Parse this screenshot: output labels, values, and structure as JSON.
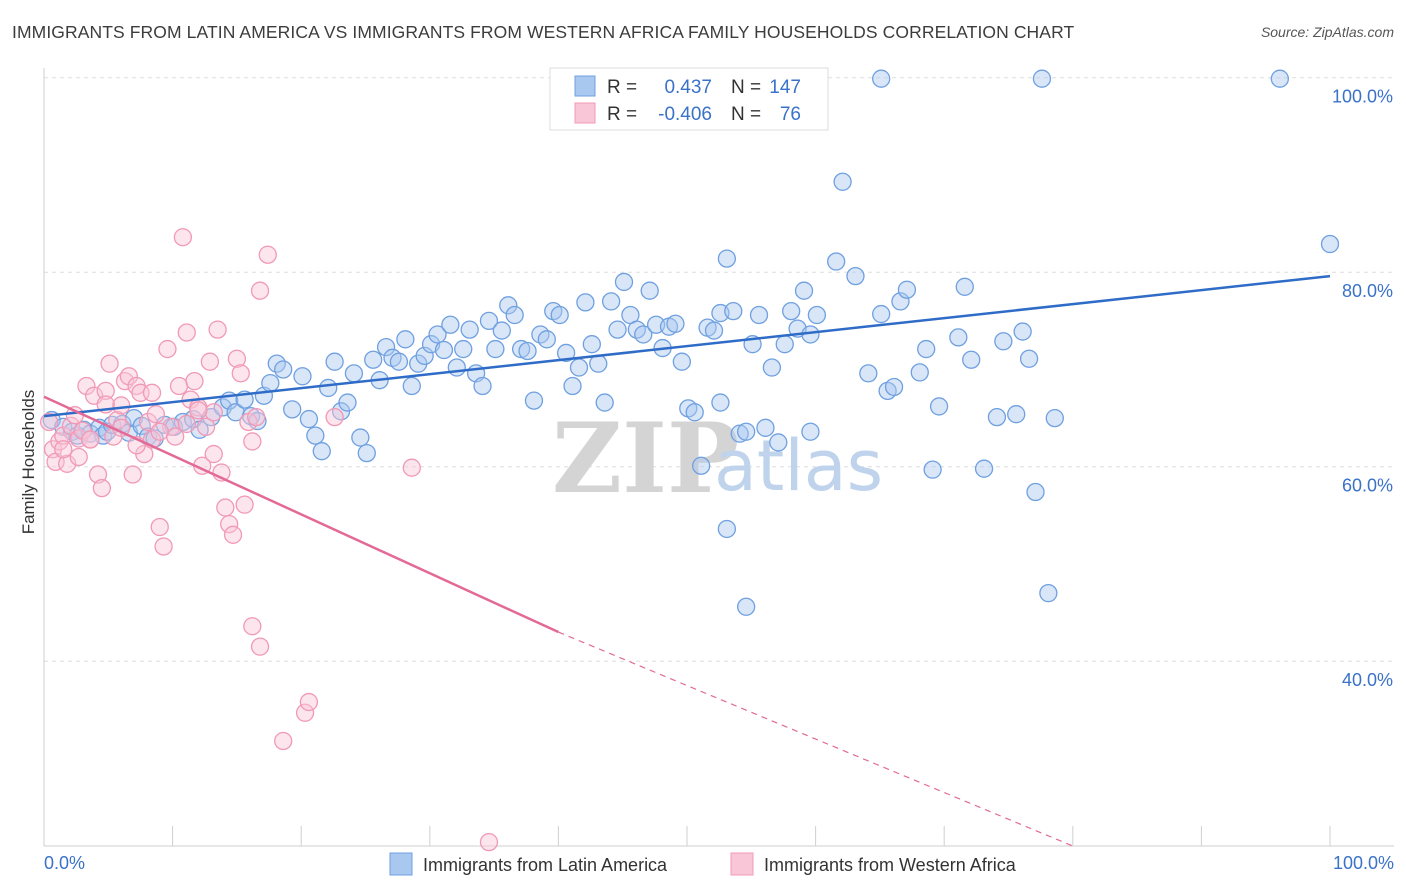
{
  "header": {
    "title": "IMMIGRANTS FROM LATIN AMERICA VS IMMIGRANTS FROM WESTERN AFRICA FAMILY HOUSEHOLDS CORRELATION CHART",
    "source": "Source: ZipAtlas.com"
  },
  "watermark": {
    "zip": "ZIP",
    "atlas": "atlas"
  },
  "chart_data": {
    "type": "scatter",
    "title": "IMMIGRANTS FROM LATIN AMERICA VS IMMIGRANTS FROM WESTERN AFRICA FAMILY HOUSEHOLDS CORRELATION CHART",
    "xlabel": "",
    "ylabel": "Family Households",
    "xlim": [
      0,
      100
    ],
    "ylim": [
      21,
      101
    ],
    "x_tick_labels": {
      "min": "0.0%",
      "max": "100.0%"
    },
    "y_ticks": [
      {
        "value": 40,
        "label": "40.0%"
      },
      {
        "value": 60,
        "label": "60.0%"
      },
      {
        "value": 80,
        "label": "80.0%"
      },
      {
        "value": 100,
        "label": "100.0%"
      }
    ],
    "grid": true,
    "legend_position": "top-center",
    "stats": [
      {
        "r_label": "R =",
        "r_value": "0.437",
        "n_label": "N =",
        "n_value": "147"
      },
      {
        "r_label": "R =",
        "r_value": "-0.406",
        "n_label": "N =",
        "n_value": "76"
      }
    ],
    "series": [
      {
        "name": "Immigrants from Latin America",
        "color": "#6fa0e0",
        "fill": "#a9c8f0",
        "line_color": "#2f6cc7",
        "trend": {
          "x0": 0,
          "y0": 65.2,
          "x1": 100,
          "y1": 79.6,
          "dashed_from": null
        },
        "points": [
          [
            0.6,
            64.8
          ],
          [
            1.5,
            64.1
          ],
          [
            2.2,
            63.6
          ],
          [
            2.6,
            63.2
          ],
          [
            3.1,
            63.8
          ],
          [
            3.6,
            63.4
          ],
          [
            4.3,
            64.0
          ],
          [
            4.6,
            63.2
          ],
          [
            4.9,
            63.6
          ],
          [
            5.3,
            64.3
          ],
          [
            6.1,
            64.4
          ],
          [
            6.6,
            63.5
          ],
          [
            7.0,
            65.0
          ],
          [
            7.6,
            64.2
          ],
          [
            8.1,
            63.1
          ],
          [
            8.6,
            62.9
          ],
          [
            9.4,
            64.3
          ],
          [
            10.1,
            64.1
          ],
          [
            10.8,
            64.6
          ],
          [
            11.6,
            64.9
          ],
          [
            12.1,
            63.8
          ],
          [
            13.0,
            65.1
          ],
          [
            13.9,
            66.1
          ],
          [
            14.4,
            66.8
          ],
          [
            14.9,
            65.6
          ],
          [
            15.6,
            66.9
          ],
          [
            16.1,
            65.2
          ],
          [
            16.6,
            64.7
          ],
          [
            17.1,
            67.3
          ],
          [
            17.6,
            68.6
          ],
          [
            18.1,
            70.6
          ],
          [
            18.6,
            70.0
          ],
          [
            19.3,
            65.9
          ],
          [
            20.1,
            69.3
          ],
          [
            20.6,
            64.9
          ],
          [
            21.1,
            63.2
          ],
          [
            21.6,
            61.6
          ],
          [
            22.1,
            68.1
          ],
          [
            22.6,
            70.8
          ],
          [
            23.1,
            65.7
          ],
          [
            23.6,
            66.6
          ],
          [
            24.1,
            69.6
          ],
          [
            24.6,
            63.0
          ],
          [
            25.1,
            61.4
          ],
          [
            25.6,
            71.0
          ],
          [
            26.1,
            68.9
          ],
          [
            26.6,
            72.3
          ],
          [
            27.1,
            71.2
          ],
          [
            27.6,
            70.8
          ],
          [
            28.1,
            73.1
          ],
          [
            28.6,
            68.3
          ],
          [
            29.1,
            70.6
          ],
          [
            29.6,
            71.4
          ],
          [
            30.1,
            72.6
          ],
          [
            30.6,
            73.6
          ],
          [
            31.1,
            72.0
          ],
          [
            31.6,
            74.6
          ],
          [
            32.1,
            70.2
          ],
          [
            32.6,
            72.1
          ],
          [
            33.1,
            74.1
          ],
          [
            33.6,
            69.6
          ],
          [
            34.1,
            68.3
          ],
          [
            34.6,
            75.0
          ],
          [
            35.1,
            72.1
          ],
          [
            35.6,
            74.0
          ],
          [
            36.1,
            76.6
          ],
          [
            36.6,
            75.6
          ],
          [
            37.1,
            72.1
          ],
          [
            37.6,
            71.9
          ],
          [
            38.1,
            66.8
          ],
          [
            38.6,
            73.6
          ],
          [
            39.1,
            73.1
          ],
          [
            39.6,
            76.0
          ],
          [
            40.1,
            75.6
          ],
          [
            40.6,
            71.7
          ],
          [
            41.1,
            68.3
          ],
          [
            41.6,
            70.2
          ],
          [
            42.1,
            76.9
          ],
          [
            42.6,
            72.6
          ],
          [
            43.1,
            70.6
          ],
          [
            43.6,
            66.6
          ],
          [
            44.1,
            77.0
          ],
          [
            44.6,
            74.1
          ],
          [
            45.1,
            79.0
          ],
          [
            45.6,
            75.6
          ],
          [
            46.1,
            74.1
          ],
          [
            46.6,
            73.6
          ],
          [
            47.1,
            78.1
          ],
          [
            47.6,
            74.6
          ],
          [
            48.1,
            72.2
          ],
          [
            48.6,
            74.4
          ],
          [
            49.1,
            74.7
          ],
          [
            49.6,
            70.8
          ],
          [
            50.1,
            66.0
          ],
          [
            50.6,
            65.6
          ],
          [
            51.1,
            60.1
          ],
          [
            51.6,
            74.3
          ],
          [
            52.1,
            74.0
          ],
          [
            52.6,
            75.8
          ],
          [
            53.1,
            81.4
          ],
          [
            53.6,
            76.0
          ],
          [
            53.1,
            53.6
          ],
          [
            54.1,
            63.4
          ],
          [
            54.6,
            63.6
          ],
          [
            54.6,
            45.6
          ],
          [
            55.1,
            72.6
          ],
          [
            55.6,
            75.6
          ],
          [
            56.1,
            64.0
          ],
          [
            56.6,
            70.2
          ],
          [
            57.1,
            62.5
          ],
          [
            57.6,
            72.6
          ],
          [
            58.1,
            76.0
          ],
          [
            58.6,
            74.2
          ],
          [
            59.1,
            78.1
          ],
          [
            59.6,
            73.6
          ],
          [
            60.1,
            75.6
          ],
          [
            61.6,
            81.1
          ],
          [
            62.1,
            89.3
          ],
          [
            63.1,
            79.6
          ],
          [
            64.1,
            69.6
          ],
          [
            65.1,
            75.7
          ],
          [
            65.6,
            67.8
          ],
          [
            66.1,
            68.2
          ],
          [
            66.6,
            77.0
          ],
          [
            67.1,
            78.2
          ],
          [
            68.1,
            69.7
          ],
          [
            68.6,
            72.1
          ],
          [
            69.1,
            59.7
          ],
          [
            69.6,
            66.2
          ],
          [
            71.1,
            73.3
          ],
          [
            71.6,
            78.5
          ],
          [
            72.1,
            71.0
          ],
          [
            73.1,
            59.8
          ],
          [
            74.1,
            65.1
          ],
          [
            74.6,
            72.9
          ],
          [
            75.6,
            65.4
          ],
          [
            76.1,
            73.9
          ],
          [
            76.6,
            71.1
          ],
          [
            77.1,
            57.4
          ],
          [
            78.1,
            47.0
          ],
          [
            78.6,
            65.0
          ],
          [
            65.1,
            99.9
          ],
          [
            77.6,
            99.9
          ],
          [
            96.1,
            99.9
          ],
          [
            100.0,
            82.9
          ],
          [
            59.6,
            63.6
          ],
          [
            52.6,
            66.6
          ]
        ]
      },
      {
        "name": "Immigrants from Western Africa",
        "color": "#f199b6",
        "fill": "#f8c6d7",
        "line_color": "#e36a96",
        "trend": {
          "x0": 0,
          "y0": 67.2,
          "x1": 40,
          "y1": 43.0,
          "dashed_to_x": 80,
          "dashed_to_y": 21.0
        },
        "points": [
          [
            0.4,
            64.6
          ],
          [
            0.7,
            61.8
          ],
          [
            0.9,
            60.5
          ],
          [
            1.2,
            62.6
          ],
          [
            1.5,
            63.2
          ],
          [
            1.8,
            60.3
          ],
          [
            2.1,
            64.2
          ],
          [
            2.4,
            65.3
          ],
          [
            2.7,
            62.9
          ],
          [
            3.0,
            63.7
          ],
          [
            3.3,
            68.3
          ],
          [
            3.6,
            62.8
          ],
          [
            3.9,
            67.3
          ],
          [
            4.2,
            59.2
          ],
          [
            4.5,
            57.8
          ],
          [
            4.8,
            67.8
          ],
          [
            5.1,
            70.6
          ],
          [
            5.4,
            63.1
          ],
          [
            5.7,
            64.8
          ],
          [
            6.0,
            66.3
          ],
          [
            6.3,
            68.8
          ],
          [
            6.6,
            69.3
          ],
          [
            6.9,
            59.2
          ],
          [
            7.2,
            68.3
          ],
          [
            7.5,
            67.6
          ],
          [
            7.8,
            61.3
          ],
          [
            8.1,
            64.6
          ],
          [
            8.4,
            62.8
          ],
          [
            8.7,
            65.4
          ],
          [
            9.0,
            53.8
          ],
          [
            9.3,
            51.8
          ],
          [
            9.6,
            72.1
          ],
          [
            9.9,
            64.1
          ],
          [
            10.2,
            63.1
          ],
          [
            10.5,
            68.3
          ],
          [
            10.8,
            83.6
          ],
          [
            11.1,
            73.8
          ],
          [
            11.4,
            66.9
          ],
          [
            11.7,
            68.8
          ],
          [
            12.0,
            66.1
          ],
          [
            12.3,
            60.1
          ],
          [
            12.6,
            64.1
          ],
          [
            12.9,
            70.8
          ],
          [
            13.2,
            61.3
          ],
          [
            13.5,
            74.1
          ],
          [
            13.8,
            59.4
          ],
          [
            14.1,
            55.8
          ],
          [
            14.4,
            54.1
          ],
          [
            14.7,
            53.0
          ],
          [
            15.0,
            71.1
          ],
          [
            15.3,
            69.6
          ],
          [
            15.6,
            56.1
          ],
          [
            15.9,
            64.6
          ],
          [
            16.2,
            62.6
          ],
          [
            16.5,
            65.1
          ],
          [
            16.8,
            78.1
          ],
          [
            17.4,
            81.8
          ],
          [
            16.2,
            43.6
          ],
          [
            16.8,
            41.5
          ],
          [
            18.6,
            31.8
          ],
          [
            20.3,
            34.7
          ],
          [
            20.6,
            35.8
          ],
          [
            22.6,
            65.1
          ],
          [
            28.6,
            59.9
          ],
          [
            34.6,
            21.4
          ],
          [
            13.2,
            65.6
          ],
          [
            6.0,
            64.0
          ],
          [
            3.6,
            62.8
          ],
          [
            1.5,
            61.8
          ],
          [
            9.0,
            63.6
          ],
          [
            11.1,
            64.4
          ],
          [
            8.4,
            67.6
          ],
          [
            4.8,
            66.4
          ],
          [
            2.7,
            61.0
          ],
          [
            7.2,
            62.2
          ],
          [
            12.0,
            65.8
          ]
        ]
      }
    ]
  }
}
